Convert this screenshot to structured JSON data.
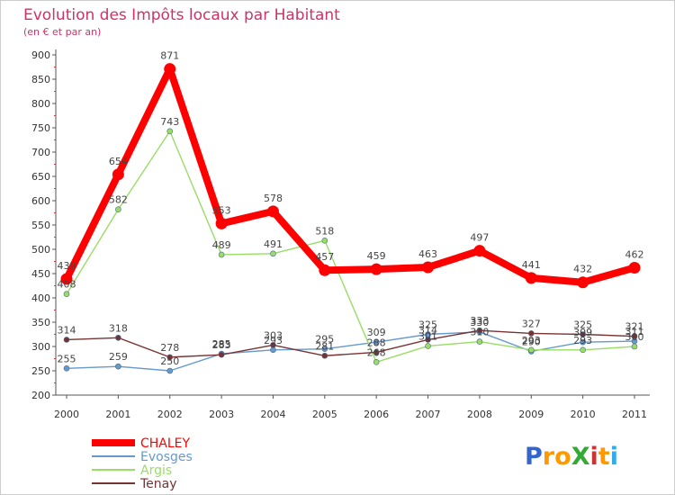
{
  "chart_data": {
    "type": "line",
    "title": "Evolution des Impôts locaux par Habitant",
    "subtitle": "(en € et par an)",
    "categories": [
      "2000",
      "2001",
      "2002",
      "2003",
      "2004",
      "2005",
      "2006",
      "2007",
      "2008",
      "2009",
      "2010",
      "2011"
    ],
    "ylim": [
      200,
      900
    ],
    "yticks": [
      200,
      250,
      300,
      350,
      400,
      450,
      500,
      550,
      600,
      650,
      700,
      750,
      800,
      850,
      900
    ],
    "grid": false,
    "legend_position": "bottom-left",
    "series": [
      {
        "name": "CHALEY",
        "color": "#ff0000",
        "values": [
          439,
          654,
          871,
          553,
          578,
          457,
          459,
          463,
          497,
          441,
          432,
          462
        ]
      },
      {
        "name": "Evosges",
        "color": "#6699cc",
        "values": [
          255,
          259,
          250,
          285,
          293,
          295,
          309,
          325,
          330,
          290,
          309,
          311
        ]
      },
      {
        "name": "Argis",
        "color": "#99dd66",
        "values": [
          408,
          582,
          743,
          489,
          491,
          518,
          268,
          301,
          310,
          293,
          293,
          300
        ]
      },
      {
        "name": "Tenay",
        "color": "#773333",
        "values": [
          314,
          318,
          278,
          283,
          303,
          281,
          288,
          314,
          333,
          327,
          325,
          321
        ]
      }
    ]
  },
  "branding": {
    "logo_text": "ProXiti"
  }
}
